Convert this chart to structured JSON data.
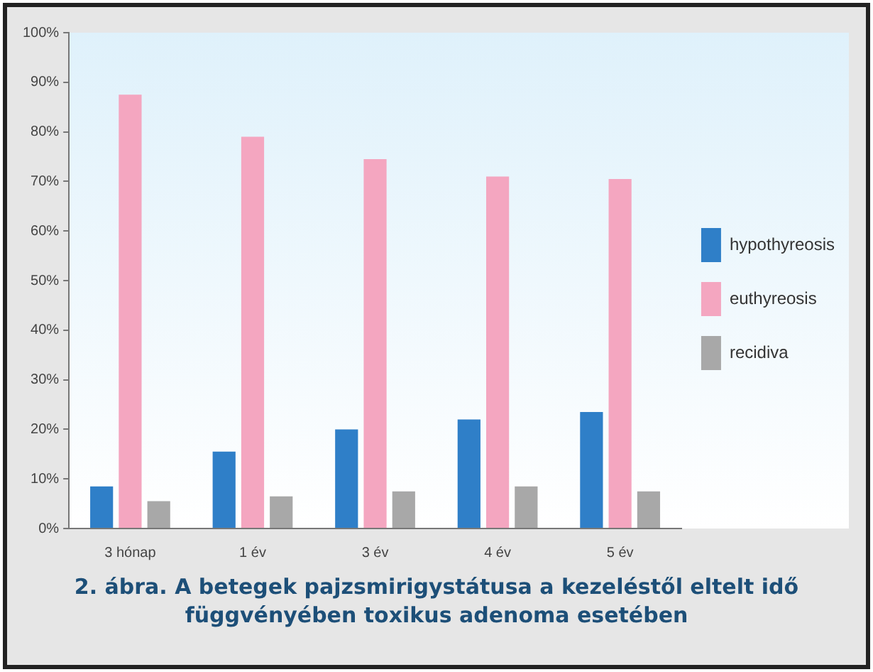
{
  "chart_data": {
    "type": "bar",
    "title": "2. ábra. A betegek pajzsmirigystátusa a kezeléstől eltelt idő függvényében toxikus adenoma esetében",
    "categories": [
      "3 hónap",
      "1 év",
      "3 év",
      "4 év",
      "5 év"
    ],
    "series": [
      {
        "name": "hypothyreosis",
        "color": "#2f7fc8",
        "values": [
          8.5,
          15.5,
          20,
          22,
          23.5
        ]
      },
      {
        "name": "euthyreosis",
        "color": "#f4a6c0",
        "values": [
          87.5,
          79,
          74.5,
          71,
          70.5
        ]
      },
      {
        "name": "recidiva",
        "color": "#a8a8a8",
        "values": [
          5.5,
          6.5,
          7.5,
          8.5,
          7.5
        ]
      }
    ],
    "ylim": [
      0,
      100
    ],
    "yticks": [
      {
        "value": 0,
        "label": "0%"
      },
      {
        "value": 10,
        "label": "10%"
      },
      {
        "value": 20,
        "label": "20%"
      },
      {
        "value": 30,
        "label": "30%"
      },
      {
        "value": 40,
        "label": "40%"
      },
      {
        "value": 50,
        "label": "50%"
      },
      {
        "value": 60,
        "label": "60%"
      },
      {
        "value": 70,
        "label": "70%"
      },
      {
        "value": 80,
        "label": "80%"
      },
      {
        "value": 90,
        "label": "90%"
      },
      {
        "value": 100,
        "label": "100%"
      }
    ],
    "grid": false,
    "legend": "right"
  }
}
